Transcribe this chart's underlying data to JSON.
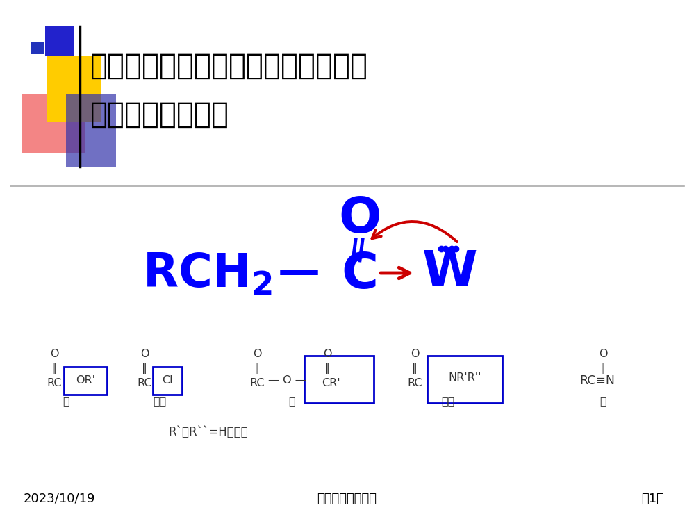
{
  "bg_color": "#ffffff",
  "title_line1": "羧酸衍生物在构造上的共同之处是分",
  "title_line2": "子中均具有酰基。",
  "title_color": "#000000",
  "title_fontsize": 30,
  "formula_color": "#0000ff",
  "arrow_color": "#cc0000",
  "footer_left": "2023/10/19",
  "footer_center": "温州医学院药学院",
  "footer_right": "第1页",
  "footer_color": "#000000",
  "footer_fontsize": 13
}
